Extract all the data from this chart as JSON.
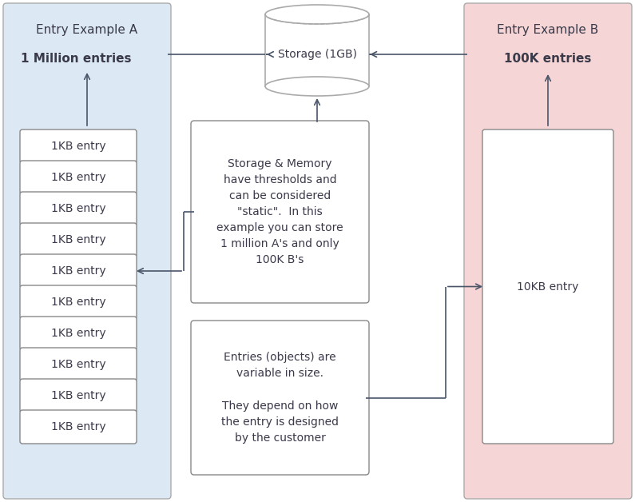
{
  "fig_width": 7.95,
  "fig_height": 6.28,
  "bg_color": "#ffffff",
  "panel_A_bg": "#dce9f5",
  "panel_B_bg": "#f5d5d5",
  "panel_A_title": "Entry Example A",
  "panel_B_title": "Entry Example B",
  "panel_A_subtitle": "1 Million entries",
  "panel_B_subtitle": "100K entries",
  "storage_label": "Storage (1GB)",
  "entry_A_label": "1KB entry",
  "entry_B_label": "10KB entry",
  "box1_text": "Storage & Memory\nhave thresholds and\ncan be considered\n\"static\".  In this\nexample you can store\n1 million A's and only\n100K B's",
  "box2_text": "Entries (objects) are\nvariable in size.\n\nThey depend on how\nthe entry is designed\nby the customer",
  "entry_count": 10,
  "border_color": "#aaaaaa",
  "arrow_color": "#4a5568",
  "text_color": "#3a3a4a",
  "box_border": "#888888",
  "panel_border": "#aaaaaa"
}
